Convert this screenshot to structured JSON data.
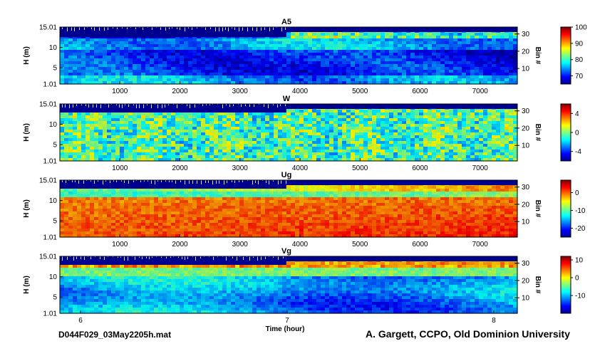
{
  "figure": {
    "file_label": "D044F029_03May2205h.mat",
    "credit": "A. Gargett, CCPO, Old Dominion University",
    "xlabel": "Time (hour)"
  },
  "chart_data": [
    {
      "type": "heatmap",
      "title": "A5",
      "ylabel": "H (m)",
      "right_ylabel": "Bin #",
      "yticks": [
        "1.01",
        "5",
        "10",
        "15.01"
      ],
      "right_yticks": [
        "10",
        "20",
        "30"
      ],
      "top_xticks": [
        "1000",
        "2000",
        "3000",
        "4000",
        "5000",
        "6000",
        "7000"
      ],
      "colorbar_ticks": [
        "70",
        "80",
        "90",
        "100"
      ],
      "colorbar_range": [
        65,
        100
      ]
    },
    {
      "type": "heatmap",
      "title": "W",
      "ylabel": "H (m)",
      "right_ylabel": "Bin #",
      "yticks": [
        "1.01",
        "5",
        "10",
        "15.01"
      ],
      "right_yticks": [
        "10",
        "20",
        "30"
      ],
      "top_xticks": [
        "1000",
        "2000",
        "3000",
        "4000",
        "5000",
        "6000",
        "7000"
      ],
      "colorbar_ticks": [
        "-4",
        "0",
        "4"
      ],
      "colorbar_range": [
        -6,
        6
      ]
    },
    {
      "type": "heatmap",
      "title": "Ug",
      "ylabel": "H (m)",
      "right_ylabel": "Bin #",
      "yticks": [
        "1.01",
        "5",
        "10",
        "15.01"
      ],
      "right_yticks": [
        "10",
        "20",
        "30"
      ],
      "top_xticks": [
        "1000",
        "2000",
        "3000",
        "4000",
        "5000",
        "6000",
        "7000"
      ],
      "colorbar_ticks": [
        "-20",
        "-10",
        "0"
      ],
      "colorbar_range": [
        -25,
        7
      ]
    },
    {
      "type": "heatmap",
      "title": "Vg",
      "ylabel": "H (m)",
      "right_ylabel": "Bin #",
      "yticks": [
        "1.01",
        "5",
        "10",
        "15.01"
      ],
      "right_yticks": [
        "10",
        "20",
        "30"
      ],
      "bottom_xticks": [
        "6",
        "7",
        "8"
      ],
      "colorbar_ticks": [
        "-10",
        "0",
        "10"
      ],
      "colorbar_range": [
        -20,
        12
      ]
    }
  ],
  "colormap": [
    "#00008f",
    "#0000ff",
    "#0080ff",
    "#00ffff",
    "#80ff80",
    "#ffff00",
    "#ff8000",
    "#ff0000",
    "#800000"
  ]
}
